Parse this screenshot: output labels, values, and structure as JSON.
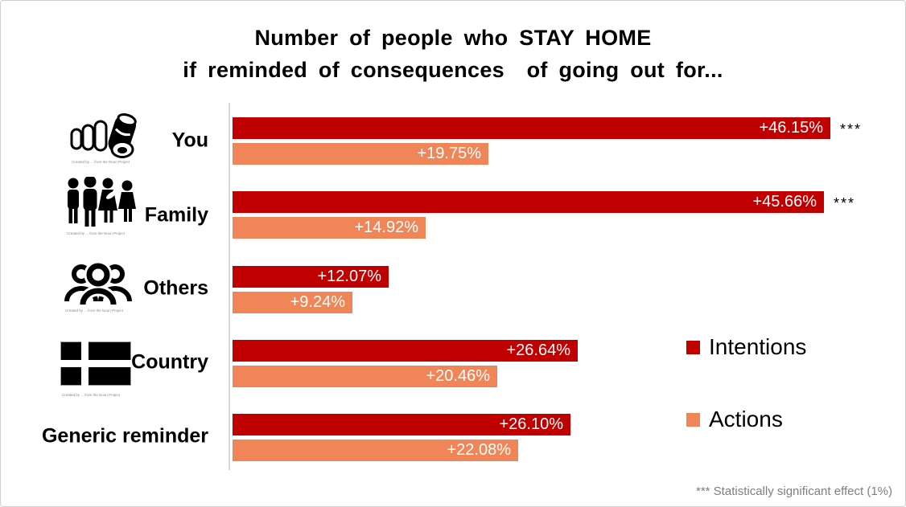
{
  "chart_data": {
    "type": "bar",
    "orientation": "horizontal",
    "title": "Number of people who STAY HOME if reminded of consequences of going out for...",
    "title_lines": [
      "Number of people who STAY HOME",
      "if reminded of consequences  of going out for..."
    ],
    "categories": [
      "You",
      "Family",
      "Others",
      "Country",
      "Generic reminder"
    ],
    "series": [
      {
        "name": "Intentions",
        "color": "#C00000",
        "values": [
          46.15,
          45.66,
          12.07,
          26.64,
          26.1
        ],
        "labels": [
          "+46.15%",
          "+45.66%",
          "+12.07%",
          "+26.64%",
          "+26.10%"
        ],
        "significance": [
          "***",
          "***",
          "",
          "",
          ""
        ]
      },
      {
        "name": "Actions",
        "color": "#F08557",
        "values": [
          19.75,
          14.92,
          9.24,
          20.46,
          22.08
        ],
        "labels": [
          "+19.75%",
          "+14.92%",
          "+9.24%",
          "+20.46%",
          "+22.08%"
        ],
        "significance": [
          "",
          "",
          "",
          "",
          ""
        ]
      }
    ],
    "xlim": [
      0,
      50
    ],
    "grid": false,
    "legend_position": "right",
    "footnote": "*** Statistically significant effect (1%)"
  },
  "icons": [
    {
      "category": "You",
      "name": "pointing-finger-icon",
      "attribution": "Created by ... from the Noun Project"
    },
    {
      "category": "Family",
      "name": "family-icon",
      "attribution": "Created by ... from the Noun Project"
    },
    {
      "category": "Others",
      "name": "others-group-icon",
      "attribution": "Created by ... from the Noun Project"
    },
    {
      "category": "Country",
      "name": "country-flag-icon",
      "attribution": "Created by ... from the Noun Project"
    }
  ]
}
